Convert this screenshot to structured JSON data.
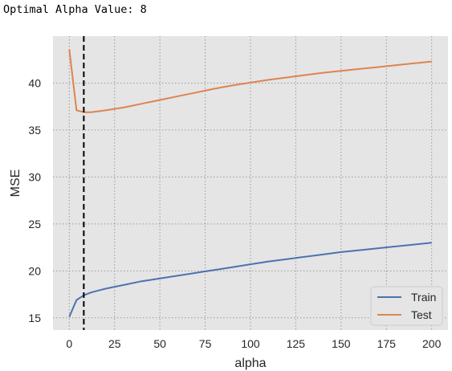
{
  "output_text": "Optimal Alpha Value: 8",
  "chart_data": {
    "type": "line",
    "xlabel": "alpha",
    "ylabel": "MSE",
    "xlim": [
      -9,
      209
    ],
    "ylim": [
      13.7,
      45
    ],
    "xticks": [
      0,
      25,
      50,
      75,
      100,
      125,
      150,
      175,
      200
    ],
    "yticks": [
      15,
      20,
      25,
      30,
      35,
      40
    ],
    "grid": true,
    "legend_placement": "lower-right",
    "vline": {
      "x": 8,
      "style": "dashed",
      "color": "#000000"
    },
    "x": [
      0,
      4,
      8,
      12,
      20,
      30,
      40,
      50,
      60,
      70,
      80,
      90,
      100,
      110,
      120,
      130,
      140,
      150,
      160,
      170,
      180,
      190,
      200
    ],
    "series": [
      {
        "name": "Train",
        "color": "#4c72b0",
        "values": [
          15.1,
          16.9,
          17.4,
          17.7,
          18.1,
          18.5,
          18.9,
          19.2,
          19.5,
          19.8,
          20.1,
          20.4,
          20.7,
          21.0,
          21.25,
          21.5,
          21.75,
          22.0,
          22.2,
          22.4,
          22.6,
          22.8,
          23.0
        ]
      },
      {
        "name": "Test",
        "color": "#dd8452",
        "values": [
          43.6,
          37.1,
          36.9,
          36.9,
          37.1,
          37.4,
          37.8,
          38.2,
          38.6,
          39.0,
          39.4,
          39.75,
          40.05,
          40.35,
          40.6,
          40.85,
          41.1,
          41.3,
          41.5,
          41.7,
          41.9,
          42.1,
          42.3
        ]
      }
    ]
  }
}
